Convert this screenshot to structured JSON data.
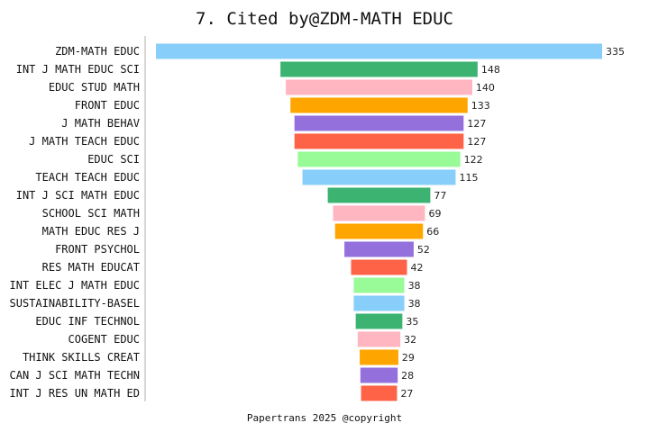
{
  "chart_data": {
    "type": "bar",
    "orientation": "horizontal-centered",
    "title": "7.  Cited by@ZDM-MATH EDUC",
    "footer": "Papertrans 2025 @copyright",
    "categories": [
      "ZDM-MATH EDUC",
      "INT J MATH EDUC SCI",
      "EDUC STUD MATH",
      "FRONT EDUC",
      "J MATH BEHAV",
      "J MATH TEACH EDUC",
      "EDUC SCI",
      "TEACH TEACH EDUC",
      "INT J SCI MATH EDUC",
      "SCHOOL SCI MATH",
      "MATH EDUC RES J",
      "FRONT PSYCHOL",
      "RES MATH EDUCAT",
      "INT ELEC J MATH EDUC",
      "SUSTAINABILITY-BASEL",
      "EDUC INF TECHNOL",
      "COGENT EDUC",
      "THINK SKILLS CREAT",
      "CAN J SCI MATH TECHN",
      "INT J RES UN MATH ED"
    ],
    "values": [
      335,
      148,
      140,
      133,
      127,
      127,
      122,
      115,
      77,
      69,
      66,
      52,
      42,
      38,
      38,
      35,
      32,
      29,
      28,
      27
    ],
    "colors": [
      "#87CEFA",
      "#3CB371",
      "#FFB6C1",
      "#FFA500",
      "#9370DB",
      "#FF6347",
      "#98FB98"
    ],
    "grid": false,
    "legend": "none"
  }
}
